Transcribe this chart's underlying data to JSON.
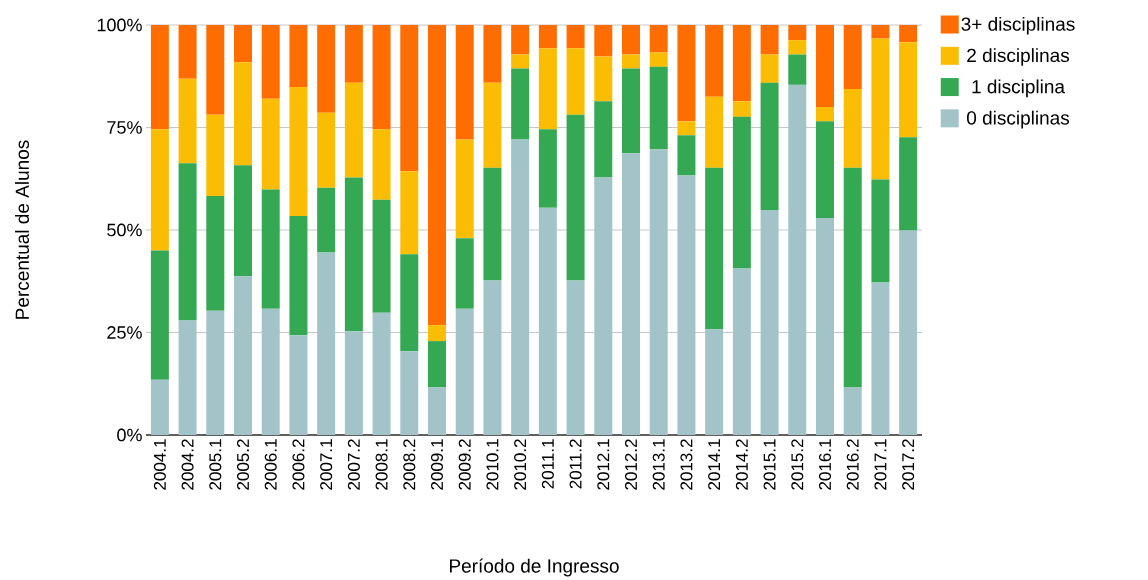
{
  "chart_data": {
    "type": "bar",
    "stacked": true,
    "xlabel": "Período de Ingresso",
    "ylabel": "Percentual de Alunos",
    "categories": [
      "2004.1",
      "2004.2",
      "2005.1",
      "2005.2",
      "2006.1",
      "2006.2",
      "2007.1",
      "2007.2",
      "2008.1",
      "2008.2",
      "2009.1",
      "2009.2",
      "2010.1",
      "2010.2",
      "2011.1",
      "2011.2",
      "2012.1",
      "2012.2",
      "2013.1",
      "2013.2",
      "2014.1",
      "2014.2",
      "2015.1",
      "2015.2",
      "2016.1",
      "2016.2",
      "2017.1",
      "2017.2"
    ],
    "series": [
      {
        "name": "0 disciplinas",
        "color": "#a2c4c9",
        "values": [
          13.5,
          27.9,
          30.3,
          38.7,
          30.8,
          24.3,
          44.5,
          25.3,
          29.8,
          20.4,
          11.6,
          30.8,
          37.7,
          72.1,
          55.4,
          37.7,
          62.8,
          68.7,
          69.7,
          63.3,
          25.8,
          40.6,
          54.9,
          85.4,
          52.9,
          11.6,
          37.2,
          49.9
        ]
      },
      {
        "name": "1 disciplina",
        "color": "#34a853",
        "values": [
          31.5,
          38.4,
          28.0,
          27.1,
          29.1,
          29.1,
          15.8,
          37.5,
          27.6,
          23.7,
          11.3,
          17.2,
          27.5,
          17.3,
          19.2,
          40.4,
          18.6,
          20.7,
          20.1,
          9.8,
          39.4,
          37.0,
          31.0,
          7.4,
          23.6,
          53.6,
          25.1,
          22.7
        ]
      },
      {
        "name": "2 disciplinas",
        "color": "#fbbc04",
        "values": [
          29.6,
          20.6,
          19.8,
          25.1,
          22.1,
          31.5,
          18.3,
          23.1,
          17.2,
          20.2,
          3.9,
          24.1,
          20.7,
          3.4,
          19.7,
          16.2,
          10.9,
          3.4,
          3.5,
          3.4,
          17.3,
          3.8,
          6.9,
          3.5,
          3.5,
          19.2,
          34.4,
          23.2
        ]
      },
      {
        "name": "3+ disciplinas",
        "color": "#ff6d01",
        "values": [
          25.4,
          13.1,
          21.9,
          9.1,
          18.0,
          15.1,
          21.4,
          14.1,
          25.4,
          35.7,
          73.2,
          27.9,
          14.1,
          7.2,
          5.7,
          5.7,
          7.7,
          7.2,
          6.7,
          23.5,
          17.5,
          18.6,
          7.2,
          3.7,
          20.0,
          15.6,
          3.3,
          4.2
        ]
      }
    ],
    "ylim": [
      0,
      100
    ],
    "yticks": [
      {
        "value": 0,
        "label": "0%"
      },
      {
        "value": 25,
        "label": "25%"
      },
      {
        "value": 50,
        "label": "50%"
      },
      {
        "value": 75,
        "label": "75%"
      },
      {
        "value": 100,
        "label": "100%"
      }
    ],
    "grid": "y",
    "legend": "top right"
  }
}
